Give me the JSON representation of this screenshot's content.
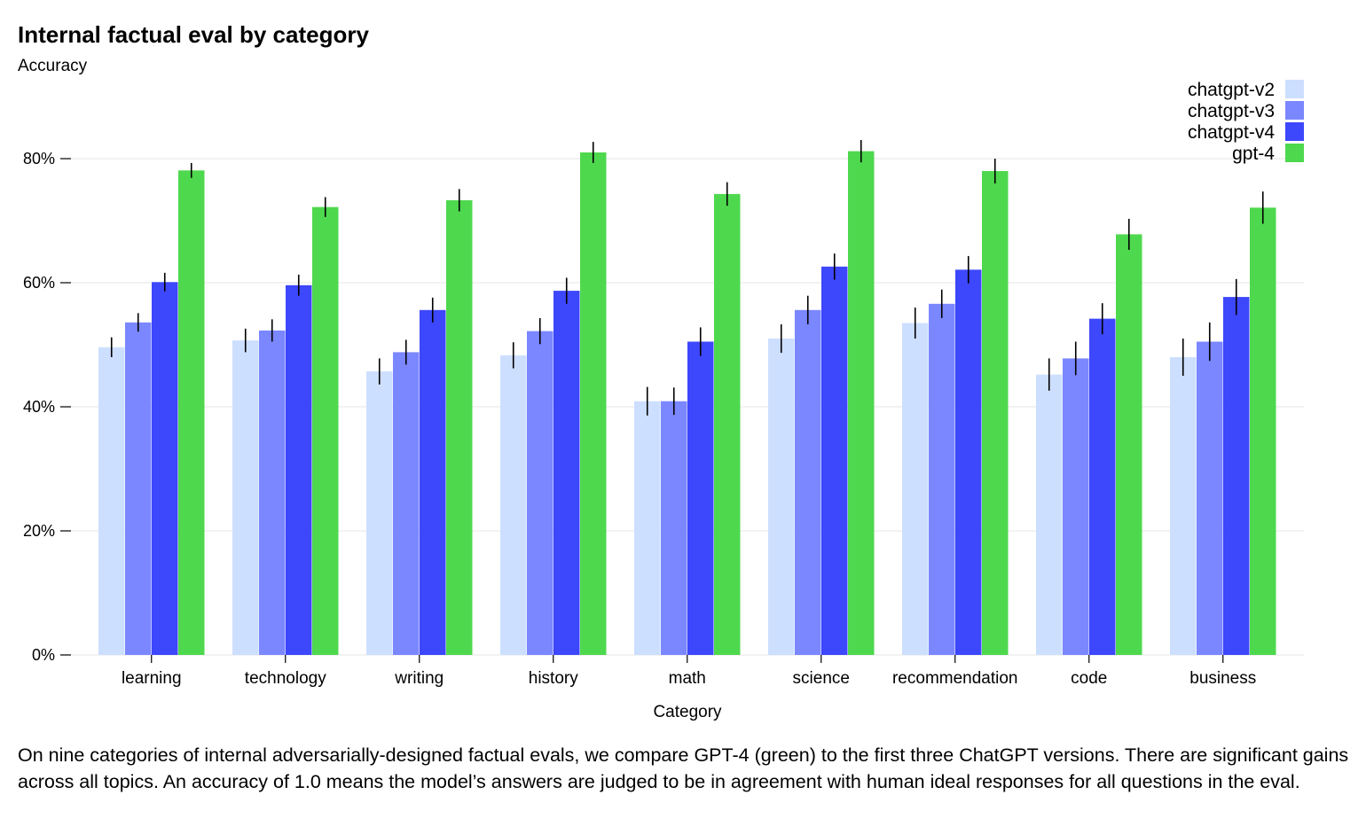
{
  "chart_data": {
    "type": "bar",
    "title": "Internal factual eval by category",
    "ylabel": "Accuracy",
    "xlabel": "Category",
    "ylim": [
      0,
      0.8
    ],
    "yticks": [
      {
        "value": 0,
        "label": "0%"
      },
      {
        "value": 0.2,
        "label": "20%"
      },
      {
        "value": 0.4,
        "label": "40%"
      },
      {
        "value": 0.6,
        "label": "60%"
      },
      {
        "value": 0.8,
        "label": "80%"
      }
    ],
    "grid": true,
    "legend_position": "top-right",
    "categories": [
      "learning",
      "technology",
      "writing",
      "history",
      "math",
      "science",
      "recommendation",
      "code",
      "business"
    ],
    "series": [
      {
        "name": "chatgpt-v2",
        "color": "#cddfff",
        "values": [
          0.496,
          0.507,
          0.457,
          0.483,
          0.409,
          0.51,
          0.535,
          0.452,
          0.48
        ],
        "errors": [
          0.016,
          0.019,
          0.021,
          0.021,
          0.023,
          0.023,
          0.025,
          0.026,
          0.03
        ]
      },
      {
        "name": "chatgpt-v3",
        "color": "#7b87ff",
        "values": [
          0.536,
          0.523,
          0.488,
          0.522,
          0.409,
          0.556,
          0.566,
          0.478,
          0.505
        ],
        "errors": [
          0.015,
          0.018,
          0.02,
          0.021,
          0.022,
          0.023,
          0.023,
          0.027,
          0.031
        ]
      },
      {
        "name": "chatgpt-v4",
        "color": "#3d47fb",
        "values": [
          0.601,
          0.596,
          0.556,
          0.587,
          0.505,
          0.626,
          0.621,
          0.542,
          0.577
        ],
        "errors": [
          0.015,
          0.017,
          0.02,
          0.021,
          0.023,
          0.021,
          0.022,
          0.025,
          0.029
        ]
      },
      {
        "name": "gpt-4",
        "color": "#4ed84e",
        "values": [
          0.781,
          0.722,
          0.733,
          0.81,
          0.743,
          0.812,
          0.78,
          0.678,
          0.721
        ],
        "errors": [
          0.012,
          0.016,
          0.018,
          0.017,
          0.019,
          0.018,
          0.02,
          0.025,
          0.026
        ]
      }
    ]
  },
  "caption": "On nine categories of internal adversarially-designed factual evals, we compare GPT-4 (green) to the first three ChatGPT versions. There are significant gains across all topics. An accuracy of 1.0 means the model’s answers are judged to be in agreement with human ideal responses for all questions in the eval."
}
